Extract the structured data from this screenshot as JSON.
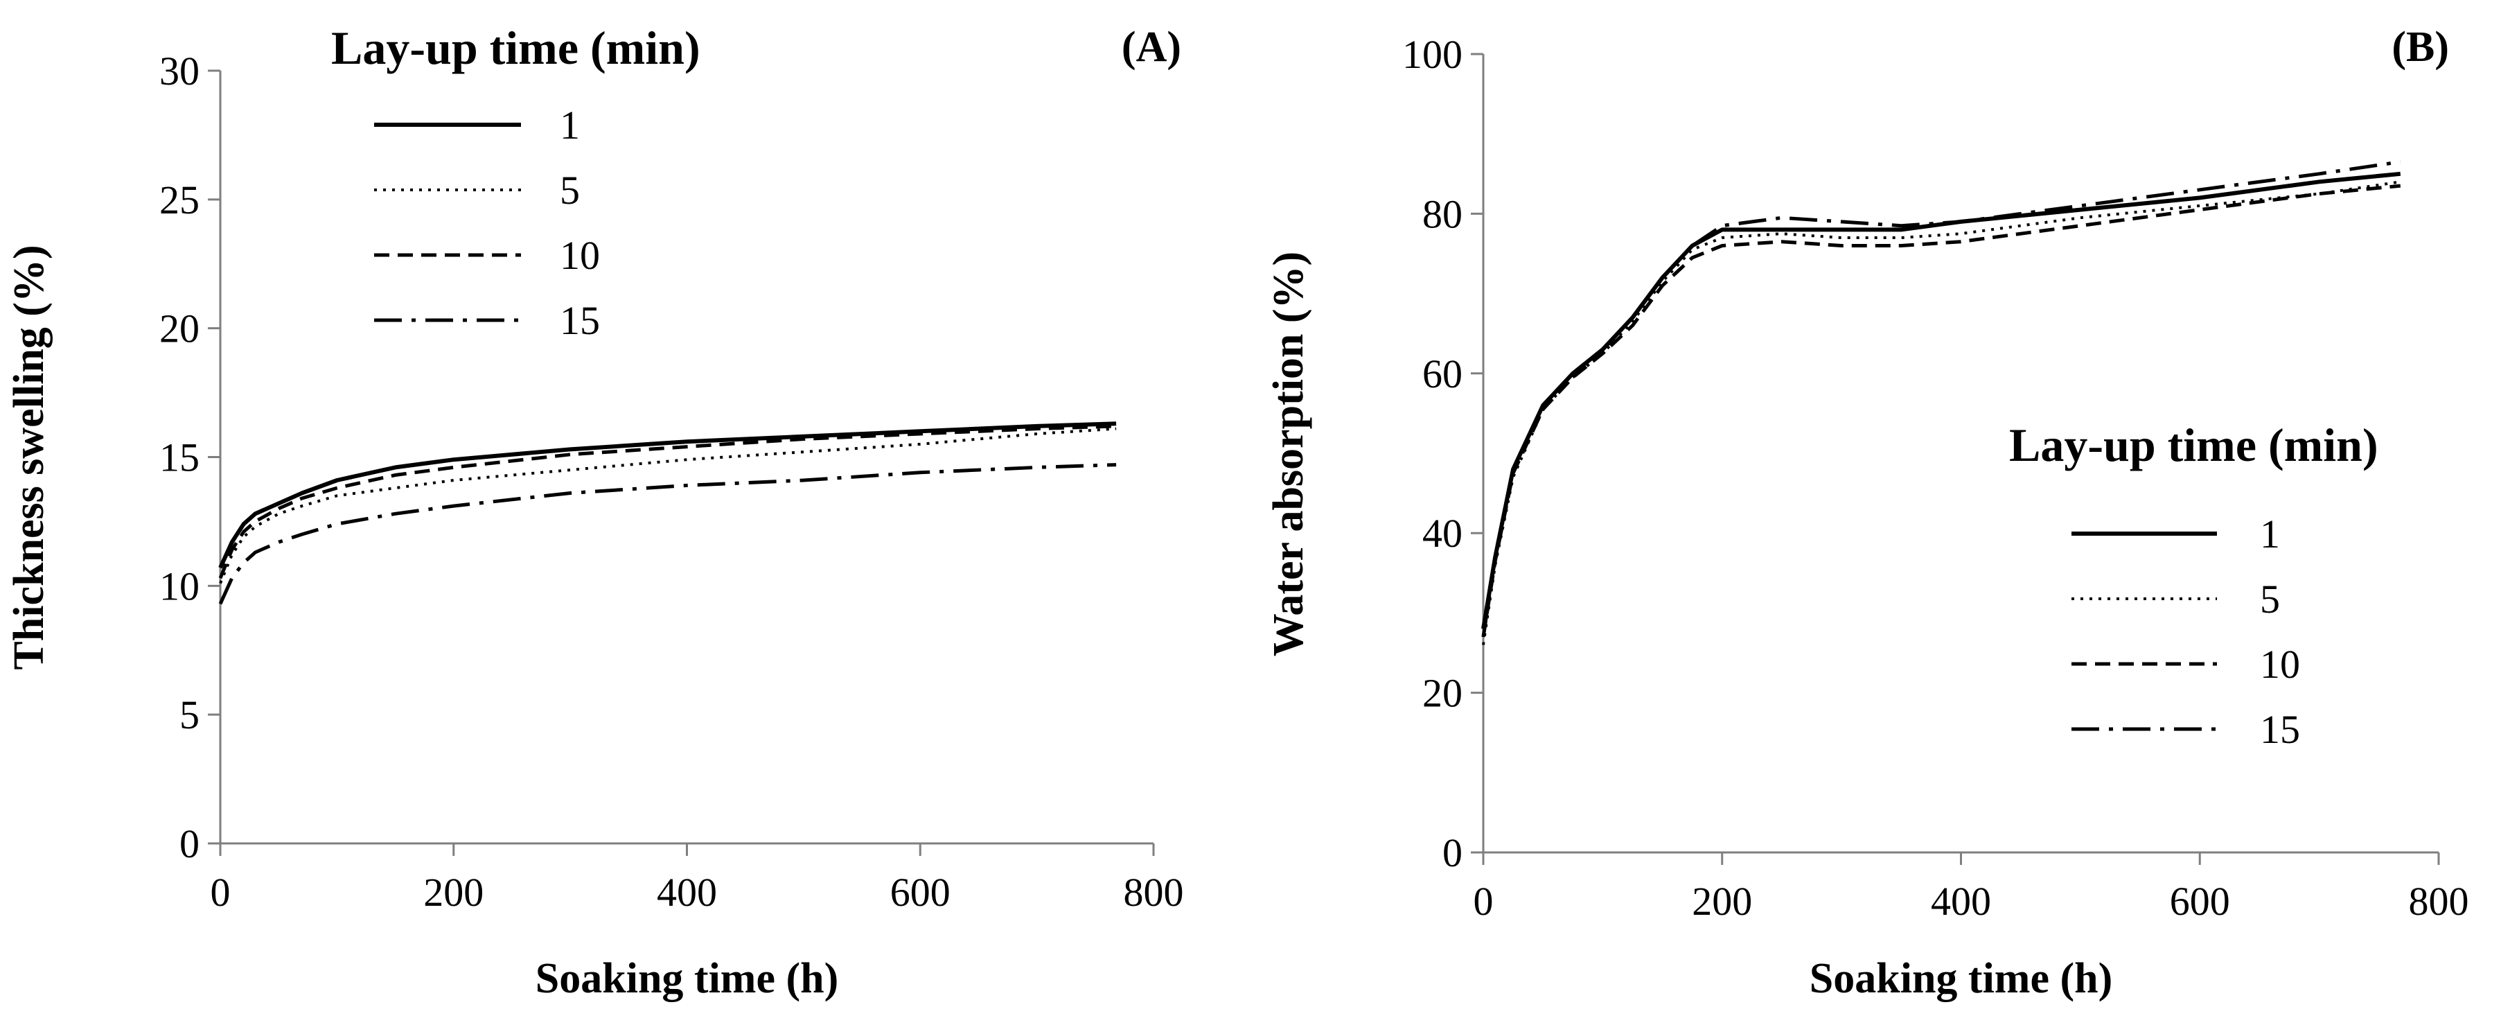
{
  "chart_data": [
    {
      "type": "line",
      "panel_label": "(A)",
      "title": "",
      "xlabel": "Soaking time (h)",
      "ylabel": "Thickness swelling (%)",
      "xlim": [
        0,
        800
      ],
      "ylim": [
        0,
        30
      ],
      "xticks": [
        0,
        200,
        400,
        600,
        800
      ],
      "yticks": [
        0,
        5,
        10,
        15,
        20,
        25,
        30
      ],
      "grid": false,
      "legend_title": "Lay-up time (min)",
      "legend_position": "top-left",
      "series": [
        {
          "name": "1",
          "style": "solid",
          "x": [
            0,
            10,
            20,
            30,
            50,
            70,
            100,
            150,
            200,
            300,
            400,
            500,
            600,
            700,
            768
          ],
          "y": [
            10.7,
            11.7,
            12.4,
            12.8,
            13.2,
            13.6,
            14.1,
            14.6,
            14.9,
            15.3,
            15.6,
            15.8,
            16.0,
            16.2,
            16.3
          ]
        },
        {
          "name": "5",
          "style": "dotted",
          "x": [
            0,
            10,
            20,
            30,
            50,
            70,
            100,
            150,
            200,
            300,
            400,
            500,
            600,
            700,
            768
          ],
          "y": [
            10.1,
            11.2,
            11.9,
            12.3,
            12.8,
            13.1,
            13.5,
            13.8,
            14.1,
            14.5,
            14.9,
            15.2,
            15.5,
            15.9,
            16.1
          ]
        },
        {
          "name": "10",
          "style": "dashed",
          "x": [
            0,
            10,
            20,
            30,
            50,
            70,
            100,
            150,
            200,
            300,
            400,
            500,
            600,
            700,
            768
          ],
          "y": [
            10.3,
            11.4,
            12.1,
            12.5,
            13.0,
            13.4,
            13.8,
            14.3,
            14.6,
            15.1,
            15.4,
            15.7,
            15.9,
            16.1,
            16.2
          ]
        },
        {
          "name": "15",
          "style": "dashdot",
          "x": [
            0,
            10,
            20,
            30,
            50,
            70,
            100,
            150,
            200,
            300,
            400,
            500,
            600,
            700,
            768
          ],
          "y": [
            9.3,
            10.3,
            10.9,
            11.3,
            11.7,
            12.0,
            12.4,
            12.8,
            13.1,
            13.6,
            13.9,
            14.1,
            14.4,
            14.6,
            14.7
          ]
        }
      ]
    },
    {
      "type": "line",
      "panel_label": "(B)",
      "title": "",
      "xlabel": "Soaking time (h)",
      "ylabel": "Water absorption (%)",
      "xlim": [
        0,
        800
      ],
      "ylim": [
        0,
        100
      ],
      "xticks": [
        0,
        200,
        400,
        600,
        800
      ],
      "yticks": [
        0,
        20,
        40,
        60,
        80,
        100
      ],
      "grid": false,
      "legend_title": "Lay-up time (min)",
      "legend_position": "right",
      "series": [
        {
          "name": "1",
          "style": "solid",
          "x": [
            0,
            10,
            25,
            50,
            75,
            100,
            125,
            150,
            175,
            200,
            250,
            300,
            350,
            400,
            500,
            600,
            700,
            768
          ],
          "y": [
            28,
            37,
            48,
            56,
            60,
            63,
            67,
            72,
            76,
            78,
            78,
            78,
            78,
            79,
            80.5,
            82,
            84,
            85
          ]
        },
        {
          "name": "5",
          "style": "dotted",
          "x": [
            0,
            10,
            25,
            50,
            75,
            100,
            125,
            150,
            175,
            200,
            250,
            300,
            350,
            400,
            500,
            600,
            700,
            768
          ],
          "y": [
            26,
            36,
            47,
            55.5,
            59.5,
            62.5,
            66.5,
            71.5,
            75.5,
            77,
            77.5,
            77,
            77,
            77.5,
            79.5,
            81,
            82.5,
            84
          ]
        },
        {
          "name": "10",
          "style": "dashed",
          "x": [
            0,
            10,
            25,
            50,
            75,
            100,
            125,
            150,
            175,
            200,
            250,
            300,
            350,
            400,
            500,
            600,
            700,
            768
          ],
          "y": [
            27,
            36.5,
            47.5,
            55.5,
            59.5,
            62.5,
            66,
            71,
            74.5,
            76,
            76.5,
            76,
            76,
            76.5,
            78.5,
            80.5,
            82.5,
            83.5
          ]
        },
        {
          "name": "15",
          "style": "dashdot",
          "x": [
            0,
            10,
            25,
            50,
            75,
            100,
            125,
            150,
            175,
            200,
            250,
            300,
            350,
            400,
            500,
            600,
            700,
            768
          ],
          "y": [
            27,
            37,
            48,
            56,
            60,
            63,
            67,
            72,
            76,
            78.5,
            79.5,
            79,
            78.5,
            79,
            81,
            83,
            85,
            86.5
          ]
        }
      ]
    }
  ]
}
